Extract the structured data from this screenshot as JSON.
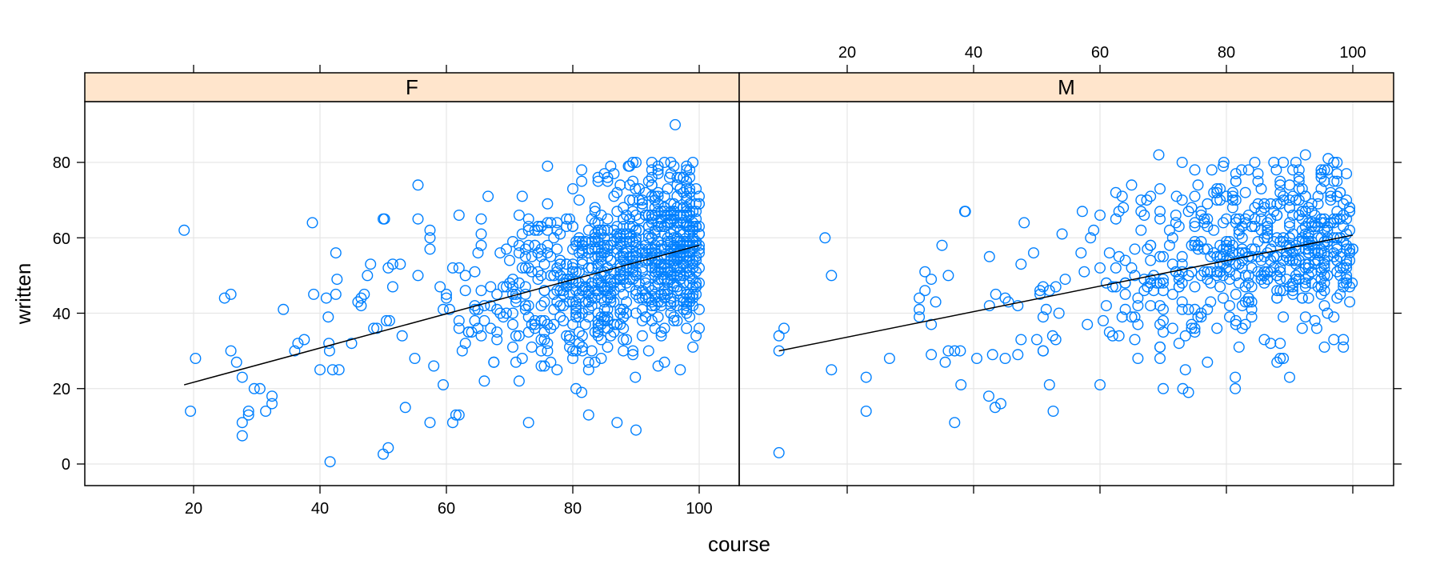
{
  "chart_data": {
    "type": "scatter",
    "title": "",
    "xlabel": "course",
    "ylabel": "written",
    "layout": "lattice xyplot, 2 panels side-by-side conditioned on gender",
    "grid": true,
    "legend": "none",
    "x_ticks": [
      20,
      40,
      60,
      80,
      100
    ],
    "y_ticks": [
      0,
      20,
      40,
      60,
      80
    ],
    "xlim": [
      2.8,
      106.3
    ],
    "ylim": [
      -5.7,
      96.2
    ],
    "point_style": "open circle",
    "point_color": "#0080FF",
    "line_color": "#000000",
    "strip_color": "#FFE5CC",
    "panels": [
      {
        "strip_label": "F",
        "regression_line": {
          "x": [
            18.5,
            100
          ],
          "y": [
            21,
            58
          ]
        },
        "n_points_approx": 950,
        "sampled_points": [
          [
            18.5,
            62
          ],
          [
            19.5,
            14
          ],
          [
            20.3,
            28
          ],
          [
            24.9,
            44
          ],
          [
            25.9,
            45
          ],
          [
            25.9,
            30
          ],
          [
            26.8,
            27
          ],
          [
            27.7,
            23
          ],
          [
            27.7,
            11
          ],
          [
            27.7,
            7.5
          ],
          [
            28.7,
            14
          ],
          [
            28.7,
            13
          ],
          [
            29.6,
            20
          ],
          [
            30.5,
            20
          ],
          [
            31.4,
            14
          ],
          [
            32.4,
            18
          ],
          [
            32.4,
            16
          ],
          [
            34.2,
            41
          ],
          [
            36,
            30
          ],
          [
            36.5,
            32
          ],
          [
            37.5,
            33
          ],
          [
            38.8,
            64
          ],
          [
            39,
            45
          ],
          [
            40,
            25
          ],
          [
            41.3,
            39
          ],
          [
            41.4,
            32
          ],
          [
            41.5,
            30
          ],
          [
            41.6,
            0.6
          ],
          [
            42,
            25
          ],
          [
            42.5,
            56
          ],
          [
            42.5,
            45
          ],
          [
            42.7,
            49
          ],
          [
            43,
            25
          ],
          [
            45,
            32
          ],
          [
            46,
            43
          ],
          [
            46.5,
            44
          ],
          [
            47,
            45
          ],
          [
            47.5,
            50
          ],
          [
            48,
            53
          ],
          [
            48.5,
            36
          ],
          [
            49,
            36
          ],
          [
            50,
            65
          ],
          [
            50,
            2.6
          ],
          [
            50.2,
            65
          ],
          [
            50.8,
            4.3
          ],
          [
            50.8,
            52
          ],
          [
            51.5,
            53
          ],
          [
            52.7,
            53
          ],
          [
            55.5,
            74
          ],
          [
            55.5,
            65
          ],
          [
            57.4,
            62
          ],
          [
            57.4,
            60
          ],
          [
            57.4,
            57
          ],
          [
            57.4,
            11
          ],
          [
            61,
            11
          ],
          [
            62,
            66
          ],
          [
            66.6,
            71
          ],
          [
            72,
            71
          ],
          [
            73,
            11
          ],
          [
            76,
            79
          ],
          [
            80.5,
            20
          ],
          [
            81.4,
            78
          ],
          [
            81.4,
            75
          ],
          [
            81.4,
            19
          ],
          [
            84,
            76
          ],
          [
            86,
            79
          ],
          [
            87,
            11
          ],
          [
            88.8,
            79
          ],
          [
            89.9,
            73
          ],
          [
            89.9,
            23
          ],
          [
            92.5,
            76
          ],
          [
            92.5,
            74
          ],
          [
            93.5,
            79
          ],
          [
            93.5,
            78
          ],
          [
            95.3,
            76
          ],
          [
            96.2,
            90
          ],
          [
            98,
            79
          ],
          [
            98,
            78
          ],
          [
            98,
            73
          ],
          [
            98,
            36
          ],
          [
            100,
            36
          ]
        ]
      },
      {
        "strip_label": "M",
        "regression_line": {
          "x": [
            9.2,
            100
          ],
          "y": [
            30,
            60.7
          ]
        },
        "n_points_approx": 640,
        "sampled_points": [
          [
            9.2,
            30
          ],
          [
            9.2,
            34
          ],
          [
            9.2,
            3
          ],
          [
            10,
            36
          ],
          [
            16.5,
            60
          ],
          [
            17.5,
            50
          ],
          [
            17.5,
            25
          ],
          [
            23,
            23
          ],
          [
            23,
            14
          ],
          [
            26.7,
            28
          ],
          [
            31.4,
            44
          ],
          [
            31.4,
            41
          ],
          [
            31.4,
            39
          ],
          [
            32.3,
            51
          ],
          [
            32.3,
            46
          ],
          [
            33.3,
            49
          ],
          [
            33.3,
            37
          ],
          [
            33.3,
            29
          ],
          [
            35,
            58
          ],
          [
            36,
            30
          ],
          [
            37,
            30
          ],
          [
            37,
            11
          ],
          [
            37.9,
            30
          ],
          [
            38.6,
            67
          ],
          [
            38.7,
            67
          ],
          [
            42.4,
            18
          ],
          [
            43.4,
            15
          ],
          [
            44.3,
            16
          ],
          [
            48,
            64
          ],
          [
            52.6,
            14
          ],
          [
            57.2,
            67
          ],
          [
            60,
            21
          ],
          [
            63.7,
            68
          ],
          [
            67.4,
            70
          ],
          [
            69.3,
            82
          ],
          [
            72.1,
            71
          ],
          [
            73.1,
            20
          ],
          [
            77.7,
            78
          ],
          [
            79.6,
            80
          ],
          [
            81.4,
            23
          ],
          [
            81.4,
            20
          ],
          [
            82.4,
            78
          ],
          [
            87.9,
            78
          ],
          [
            91.5,
            76
          ],
          [
            92.5,
            82
          ],
          [
            94.3,
            36
          ],
          [
            96.1,
            81
          ],
          [
            98,
            52
          ],
          [
            99,
            53
          ],
          [
            99,
            48
          ],
          [
            99.9,
            48
          ]
        ]
      }
    ]
  },
  "axes": {
    "x_title": "course",
    "y_title": "written",
    "bottom_tick_labels": [
      "20",
      "40",
      "60",
      "80",
      "100"
    ],
    "top_tick_labels": [
      "20",
      "40",
      "60",
      "80",
      "100"
    ],
    "left_tick_labels": [
      "0",
      "20",
      "40",
      "60",
      "80"
    ]
  },
  "strips": {
    "left": "F",
    "right": "M"
  }
}
